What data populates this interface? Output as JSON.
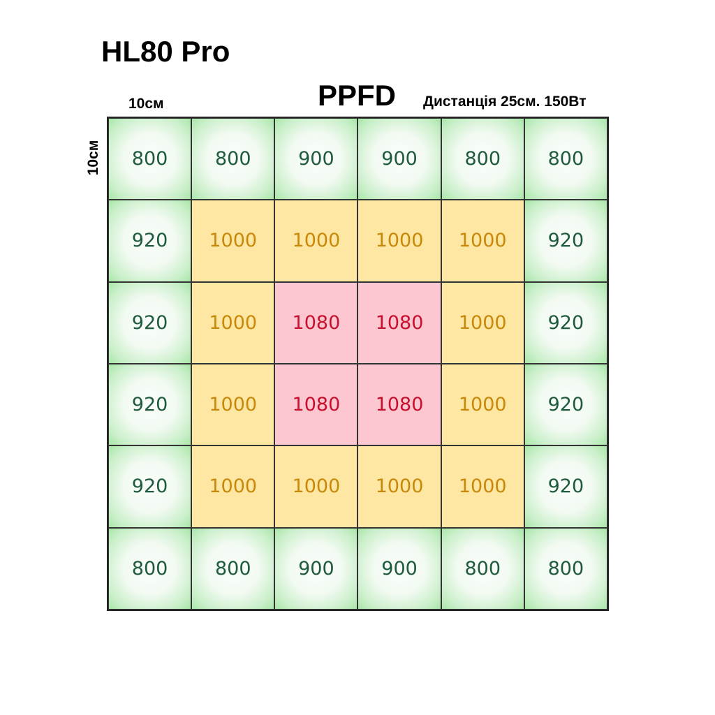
{
  "header": {
    "product": "HL80 Pro",
    "title": "PPFD",
    "x_scale": "10см",
    "y_scale": "10см",
    "subtitle": "Дистанція 25см. 150Вт"
  },
  "colors": {
    "green_zone": "#c9efc9",
    "green_text": "#1e5a3c",
    "yellow_zone": "#fde7a2",
    "yellow_text": "#c8880a",
    "pink_zone": "#fcc7d1",
    "pink_text": "#c8102e"
  },
  "chart_data": {
    "type": "heatmap",
    "title": "PPFD",
    "subtitle": "Дистанція 25см. 150Вт",
    "xlabel": "10см",
    "ylabel": "10см",
    "rows": 6,
    "cols": 6,
    "values": [
      [
        800,
        800,
        900,
        900,
        800,
        800
      ],
      [
        920,
        1000,
        1000,
        1000,
        1000,
        920
      ],
      [
        920,
        1000,
        1080,
        1080,
        1000,
        920
      ],
      [
        920,
        1000,
        1080,
        1080,
        1000,
        920
      ],
      [
        920,
        1000,
        1000,
        1000,
        1000,
        920
      ],
      [
        800,
        800,
        900,
        900,
        800,
        800
      ]
    ],
    "zones": [
      [
        "green",
        "green",
        "green",
        "green",
        "green",
        "green"
      ],
      [
        "green",
        "yellow",
        "yellow",
        "yellow",
        "yellow",
        "green"
      ],
      [
        "green",
        "yellow",
        "pink",
        "pink",
        "yellow",
        "green"
      ],
      [
        "green",
        "yellow",
        "pink",
        "pink",
        "yellow",
        "green"
      ],
      [
        "green",
        "yellow",
        "yellow",
        "yellow",
        "yellow",
        "green"
      ],
      [
        "green",
        "green",
        "green",
        "green",
        "green",
        "green"
      ]
    ]
  }
}
